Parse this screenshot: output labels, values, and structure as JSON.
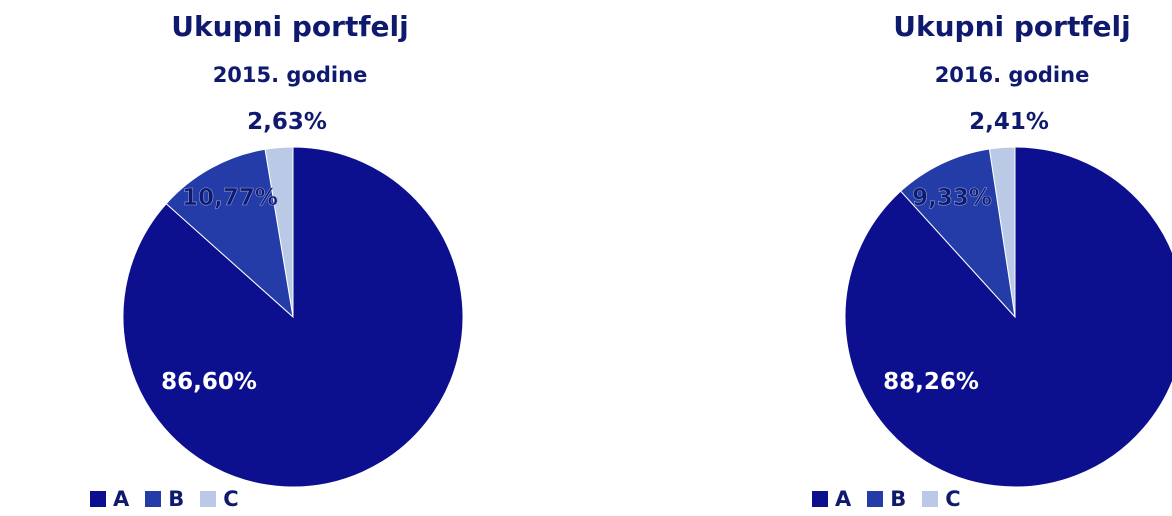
{
  "chart_data": [
    {
      "type": "pie",
      "title": "Ukupni portfelj",
      "subtitle": "2015. godine",
      "categories": [
        "A",
        "B",
        "C"
      ],
      "values": [
        86.6,
        10.77,
        2.63
      ],
      "labels": [
        "86,60%",
        "10,77%",
        "2,63%"
      ],
      "colors": [
        "#0d108e",
        "#233ca8",
        "#b9c9e6"
      ],
      "legend": "bottom-left"
    },
    {
      "type": "pie",
      "title": "Ukupni portfelj",
      "subtitle": "2016. godine",
      "categories": [
        "A",
        "B",
        "C"
      ],
      "values": [
        88.26,
        9.33,
        2.41
      ],
      "labels": [
        "88,26%",
        "9,33%",
        "2,41%"
      ],
      "colors": [
        "#0d108e",
        "#233ca8",
        "#b9c9e6"
      ],
      "legend": "bottom-left"
    }
  ]
}
